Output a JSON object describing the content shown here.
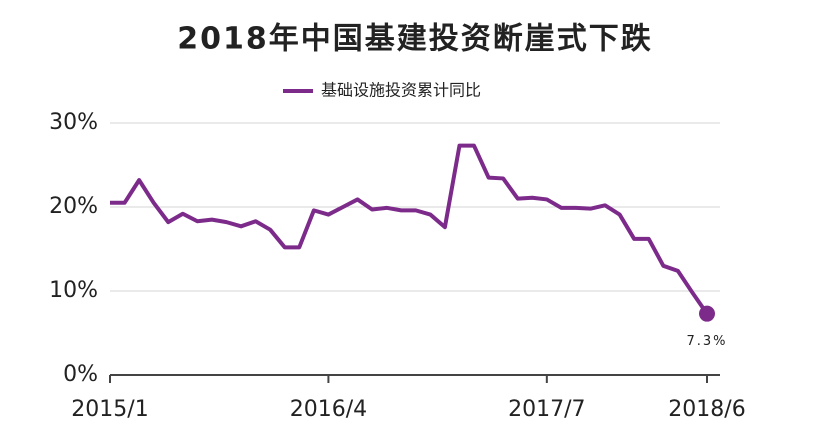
{
  "chart_data": {
    "type": "line",
    "title": "2018年中国基建投资断崖式下跌",
    "categories": [
      "2015/1",
      null,
      null,
      null,
      null,
      null,
      null,
      null,
      null,
      null,
      null,
      null,
      null,
      null,
      null,
      "2016/4",
      null,
      null,
      null,
      null,
      null,
      null,
      null,
      null,
      null,
      null,
      null,
      null,
      null,
      null,
      "2017/7",
      null,
      null,
      null,
      null,
      null,
      null,
      null,
      null,
      null,
      null,
      "2018/6"
    ],
    "series": [
      {
        "name": "基础设施投资累计同比",
        "color": "#7d2b8b",
        "values": [
          20.5,
          20.5,
          23.2,
          20.5,
          18.2,
          19.2,
          18.3,
          18.5,
          18.2,
          17.7,
          18.3,
          17.3,
          15.2,
          15.2,
          19.6,
          19.1,
          20.0,
          20.9,
          19.7,
          19.9,
          19.6,
          19.6,
          19.1,
          17.6,
          27.3,
          27.3,
          23.5,
          23.4,
          21.0,
          21.1,
          20.9,
          19.9,
          19.9,
          19.8,
          20.2,
          19.1,
          16.2,
          16.2,
          13.0,
          12.4,
          9.8,
          7.3
        ],
        "value_labels": [
          null,
          null,
          null,
          null,
          null,
          null,
          null,
          null,
          null,
          null,
          null,
          null,
          null,
          null,
          null,
          null,
          null,
          null,
          null,
          null,
          null,
          null,
          null,
          null,
          null,
          null,
          null,
          null,
          null,
          null,
          null,
          null,
          null,
          null,
          null,
          null,
          null,
          null,
          null,
          null,
          null,
          "7.3%"
        ]
      }
    ],
    "ylim": [
      0,
      30
    ],
    "yticks": [
      {
        "value": 0,
        "label": "0%"
      },
      {
        "value": 10,
        "label": "10%"
      },
      {
        "value": 20,
        "label": "20%"
      },
      {
        "value": 30,
        "label": "30%"
      }
    ],
    "grid": true,
    "legend": "top"
  }
}
